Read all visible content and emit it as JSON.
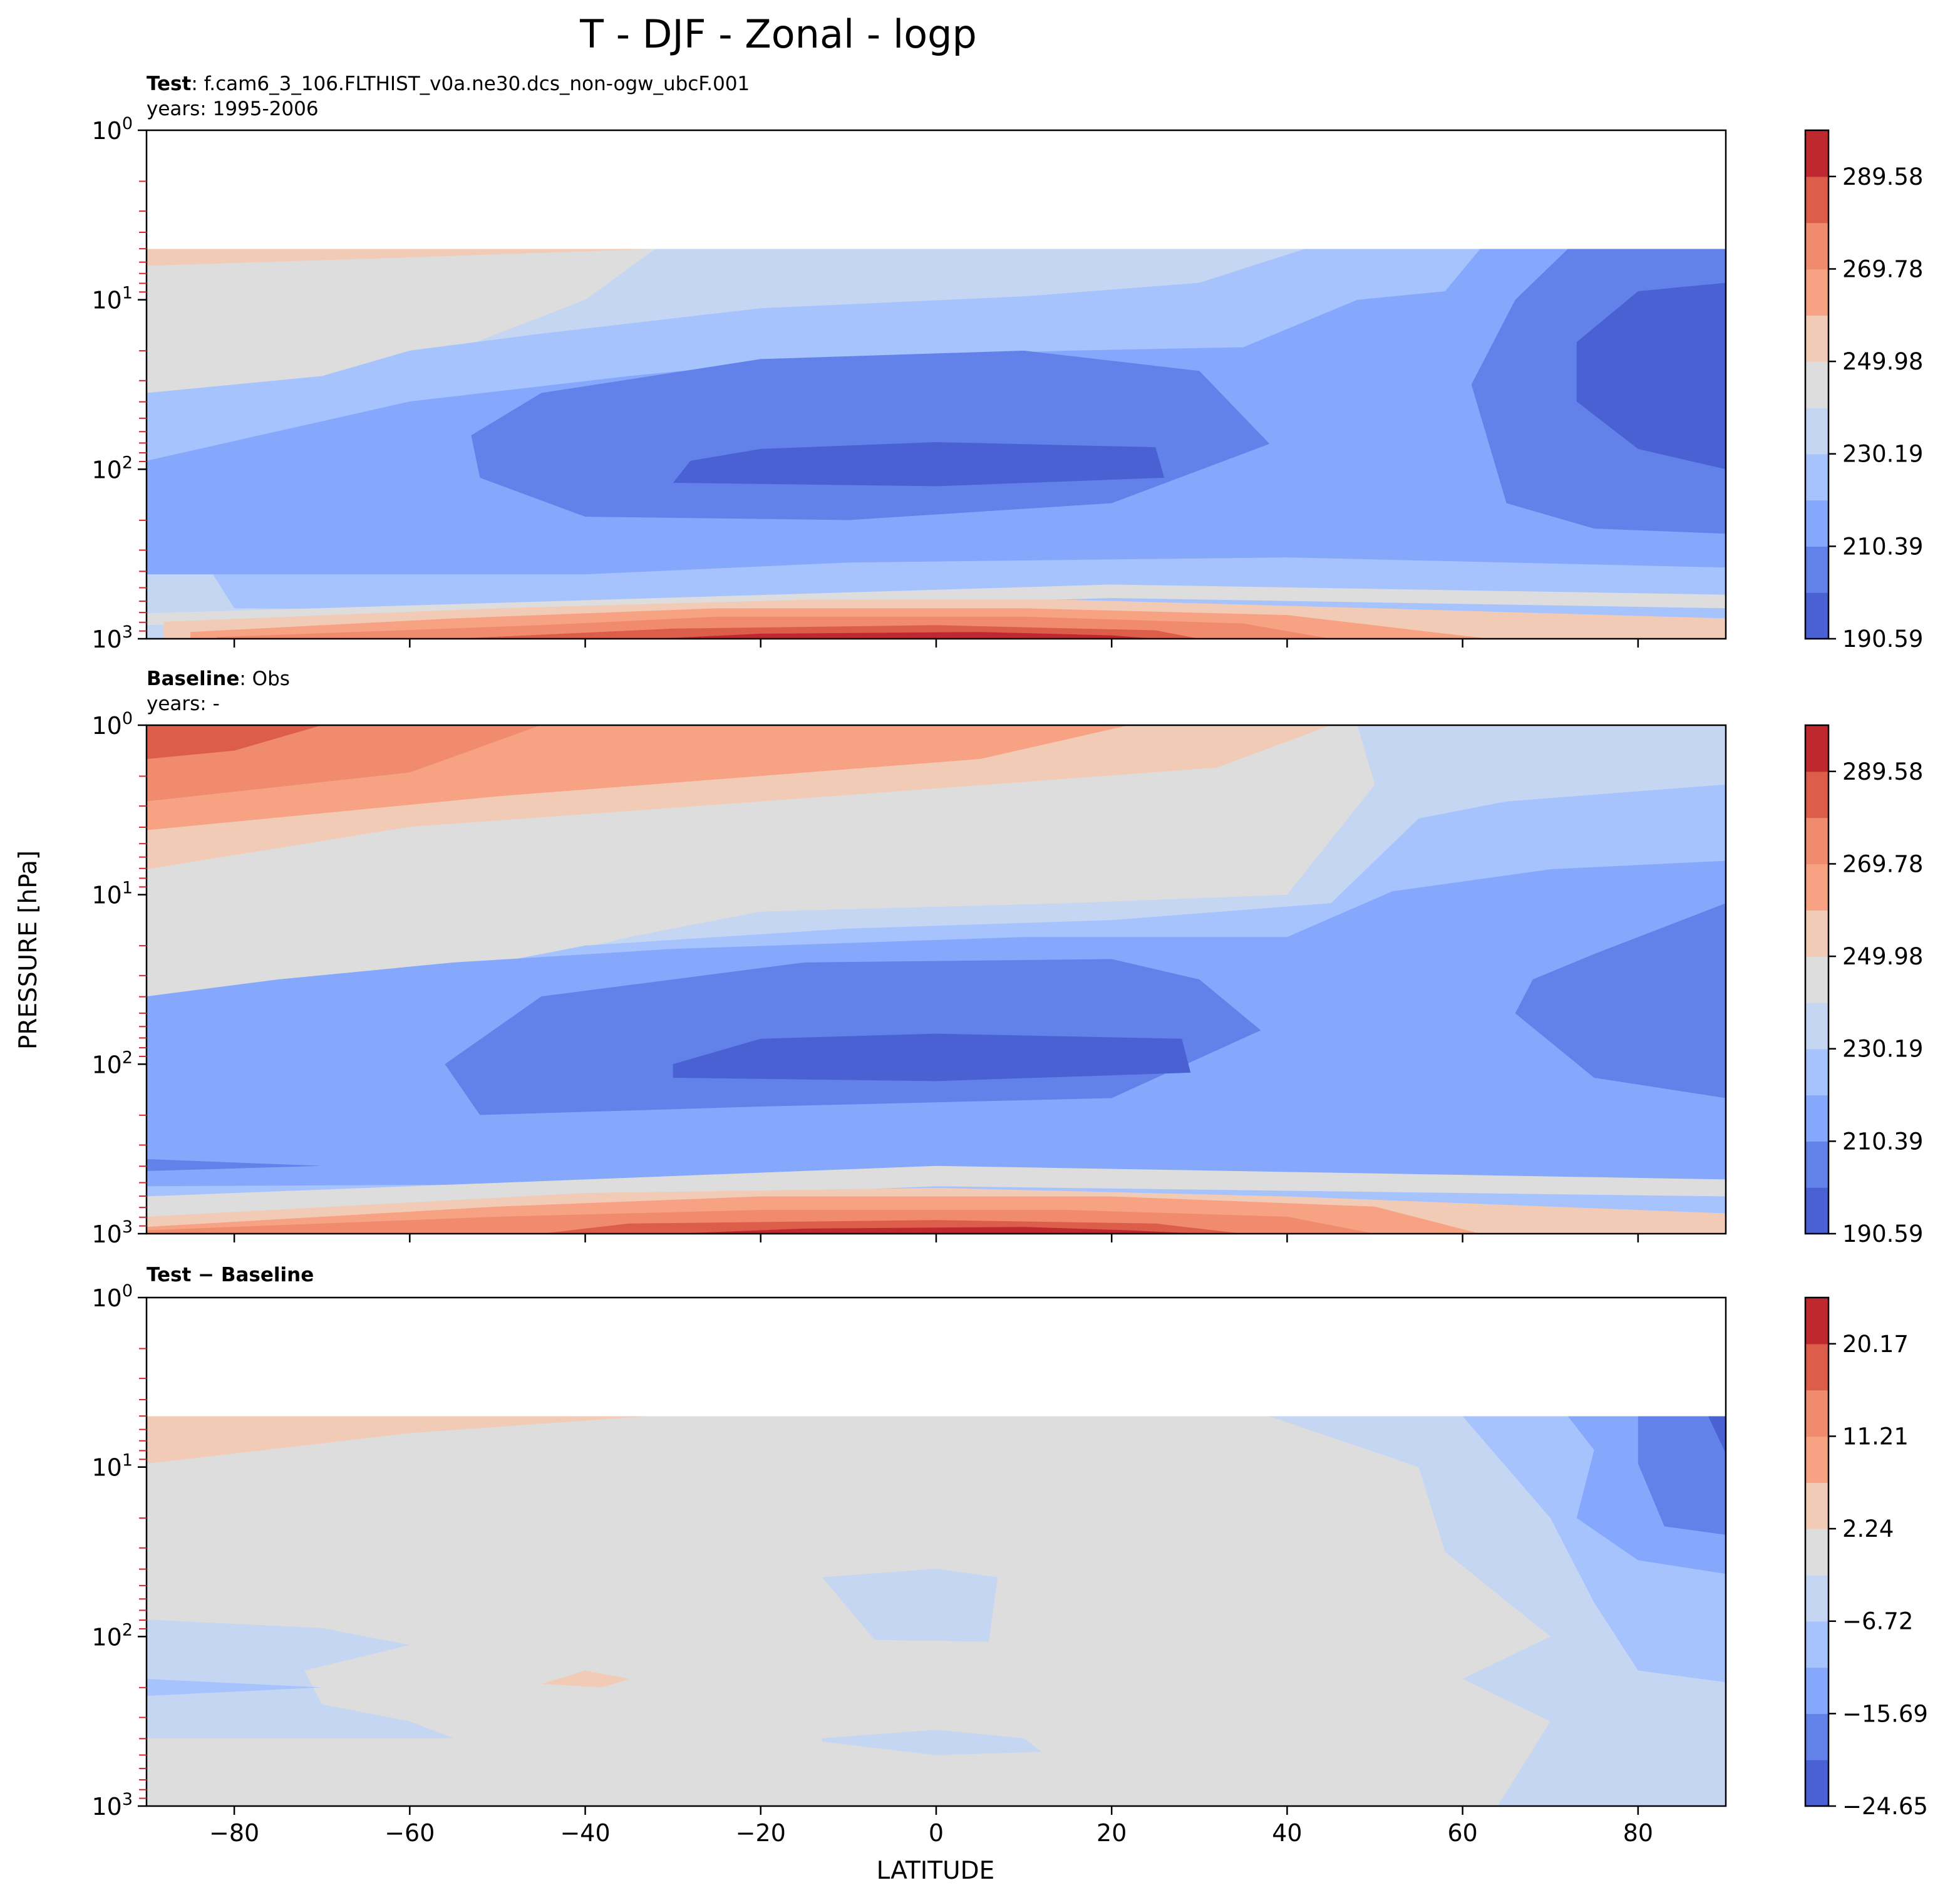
{
  "figure": {
    "title": "T - DJF - Zonal - logp",
    "xlabel": "LATITUDE",
    "ylabel": "PRESSURE [hPa]"
  },
  "palette": [
    "#4961d2",
    "#6282ea",
    "#85a8fc",
    "#a6c3fe",
    "#c5d6f2",
    "#dddddd",
    "#f2cbb7",
    "#f6a283",
    "#f08b6e",
    "#dc5d4a",
    "#c0282f"
  ],
  "chart_data": [
    {
      "type": "heatmap",
      "panel": "test",
      "label_bold": "Test",
      "label_text": ": f.cam6_3_106.FLTHIST_v0a.ne30.dcs_non-ogw_ubcF.001",
      "years_text": "years: 1995-2006",
      "x_range": [
        -90,
        90
      ],
      "ylim_hpa": [
        1000,
        1
      ],
      "y_scale": "log",
      "y_ticks": [
        "10^0",
        "10^1",
        "10^2",
        "10^3"
      ],
      "x_ticks": [
        -80,
        -60,
        -40,
        -20,
        0,
        20,
        40,
        60,
        80
      ],
      "colorbar_ticks": [
        "190.59",
        "210.39",
        "230.19",
        "249.98",
        "269.78",
        "289.58"
      ],
      "colorbar_range": [
        190.59,
        299.48
      ],
      "data_top_hpa": 5
    },
    {
      "type": "heatmap",
      "panel": "baseline",
      "label_bold": "Baseline",
      "label_text": ": Obs",
      "years_text": "years: -",
      "x_range": [
        -90,
        90
      ],
      "ylim_hpa": [
        1000,
        1
      ],
      "y_scale": "log",
      "y_ticks": [
        "10^0",
        "10^1",
        "10^2",
        "10^3"
      ],
      "x_ticks": [
        -80,
        -60,
        -40,
        -20,
        0,
        20,
        40,
        60,
        80
      ],
      "colorbar_ticks": [
        "190.59",
        "210.39",
        "230.19",
        "249.98",
        "269.78",
        "289.58"
      ],
      "colorbar_range": [
        190.59,
        299.48
      ],
      "data_top_hpa": 1
    },
    {
      "type": "heatmap",
      "panel": "difference",
      "label_bold": "Test − Baseline",
      "x_range": [
        -90,
        90
      ],
      "ylim_hpa": [
        1000,
        1
      ],
      "y_scale": "log",
      "y_ticks": [
        "10^0",
        "10^1",
        "10^2",
        "10^3"
      ],
      "x_ticks": [
        -80,
        -60,
        -40,
        -20,
        0,
        20,
        40,
        60,
        80
      ],
      "colorbar_ticks": [
        "−24.65",
        "−15.69",
        "−6.72",
        "2.24",
        "11.21",
        "20.17"
      ],
      "colorbar_range": [
        -24.65,
        24.65
      ],
      "data_top_hpa": 5
    }
  ]
}
